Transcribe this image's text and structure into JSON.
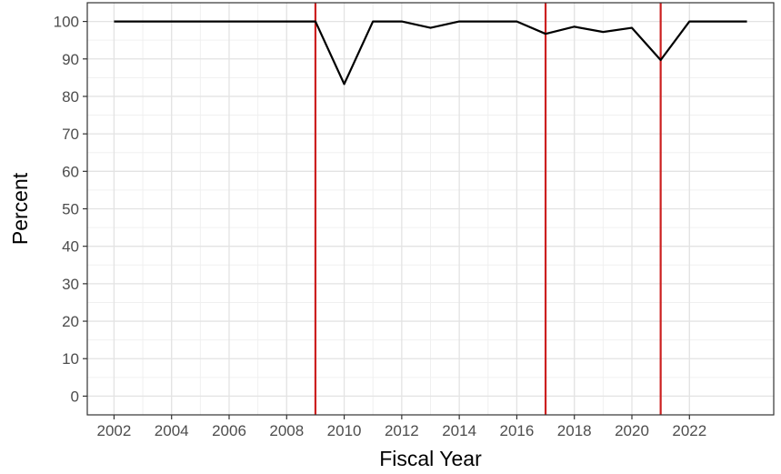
{
  "chart_data": {
    "type": "line",
    "xlabel": "Fiscal Year",
    "ylabel": "Percent",
    "xlim": [
      2001.07,
      2024.93
    ],
    "ylim": [
      -5,
      105
    ],
    "x_ticks": [
      2002,
      2004,
      2006,
      2008,
      2010,
      2012,
      2014,
      2016,
      2018,
      2020,
      2022
    ],
    "y_ticks": [
      0,
      10,
      20,
      30,
      40,
      50,
      60,
      70,
      80,
      90,
      100
    ],
    "grid": true,
    "series": [
      {
        "x": [
          2002,
          2003,
          2004,
          2005,
          2006,
          2007,
          2008,
          2009,
          2010,
          2011,
          2012,
          2013,
          2014,
          2015,
          2016,
          2017,
          2018,
          2019,
          2020,
          2021,
          2022,
          2023,
          2024
        ],
        "y": [
          100,
          100,
          100,
          100,
          100,
          100,
          100,
          100,
          83.3,
          100,
          100,
          98.3,
          100,
          100,
          100,
          96.7,
          98.6,
          97.2,
          98.3,
          89.7,
          100,
          100,
          100
        ],
        "color": "#000000"
      }
    ],
    "vlines": [
      {
        "x": 2009,
        "color": "#cc2020"
      },
      {
        "x": 2017,
        "color": "#cc2020"
      },
      {
        "x": 2021,
        "color": "#cc2020"
      }
    ]
  }
}
